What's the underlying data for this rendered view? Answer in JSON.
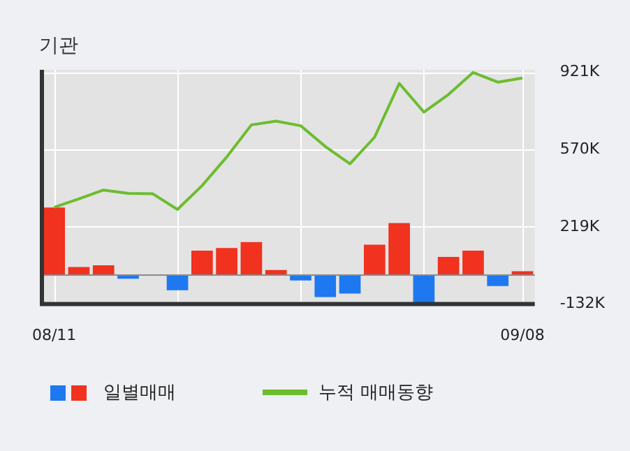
{
  "chart_data": {
    "type": "bar",
    "title": "기관",
    "categories": [
      "08/11",
      null,
      null,
      null,
      null,
      null,
      null,
      null,
      null,
      null,
      null,
      null,
      null,
      null,
      null,
      null,
      null,
      null,
      null,
      "09/08"
    ],
    "series": [
      {
        "name": "일별매매",
        "colors": [
          "#f0321e",
          "#f0321e",
          "#f0321e",
          "#1e78f0",
          "#f0321e",
          "#1e78f0",
          "#f0321e",
          "#f0321e",
          "#f0321e",
          "#f0321e",
          "#1e78f0",
          "#1e78f0",
          "#1e78f0",
          "#f0321e",
          "#f0321e",
          "#1e78f0",
          "#f0321e",
          "#f0321e",
          "#1e78f0",
          "#f0321e"
        ],
        "values": [
          307,
          36,
          44,
          -17,
          0,
          -69,
          111,
          123,
          150,
          23,
          -25,
          -100,
          -84,
          138,
          236,
          -130,
          82,
          111,
          -50,
          17
        ]
      },
      {
        "name": "누적 매매동향",
        "type": "line",
        "color": "#6cbd2e",
        "values": [
          308,
          346,
          386,
          371,
          369,
          298,
          406,
          536,
          682,
          699,
          678,
          584,
          505,
          626,
          870,
          740,
          820,
          920,
          876,
          895
        ]
      }
    ],
    "ylim": [
      -132,
      932
    ],
    "yticks": [
      {
        "value": 921,
        "label": "921K"
      },
      {
        "value": 570,
        "label": "570K"
      },
      {
        "value": 219,
        "label": "219K"
      },
      {
        "value": -132,
        "label": "-132K"
      }
    ],
    "grid": true,
    "legend": "bottom",
    "marker": "none",
    "line_style": "solid"
  }
}
